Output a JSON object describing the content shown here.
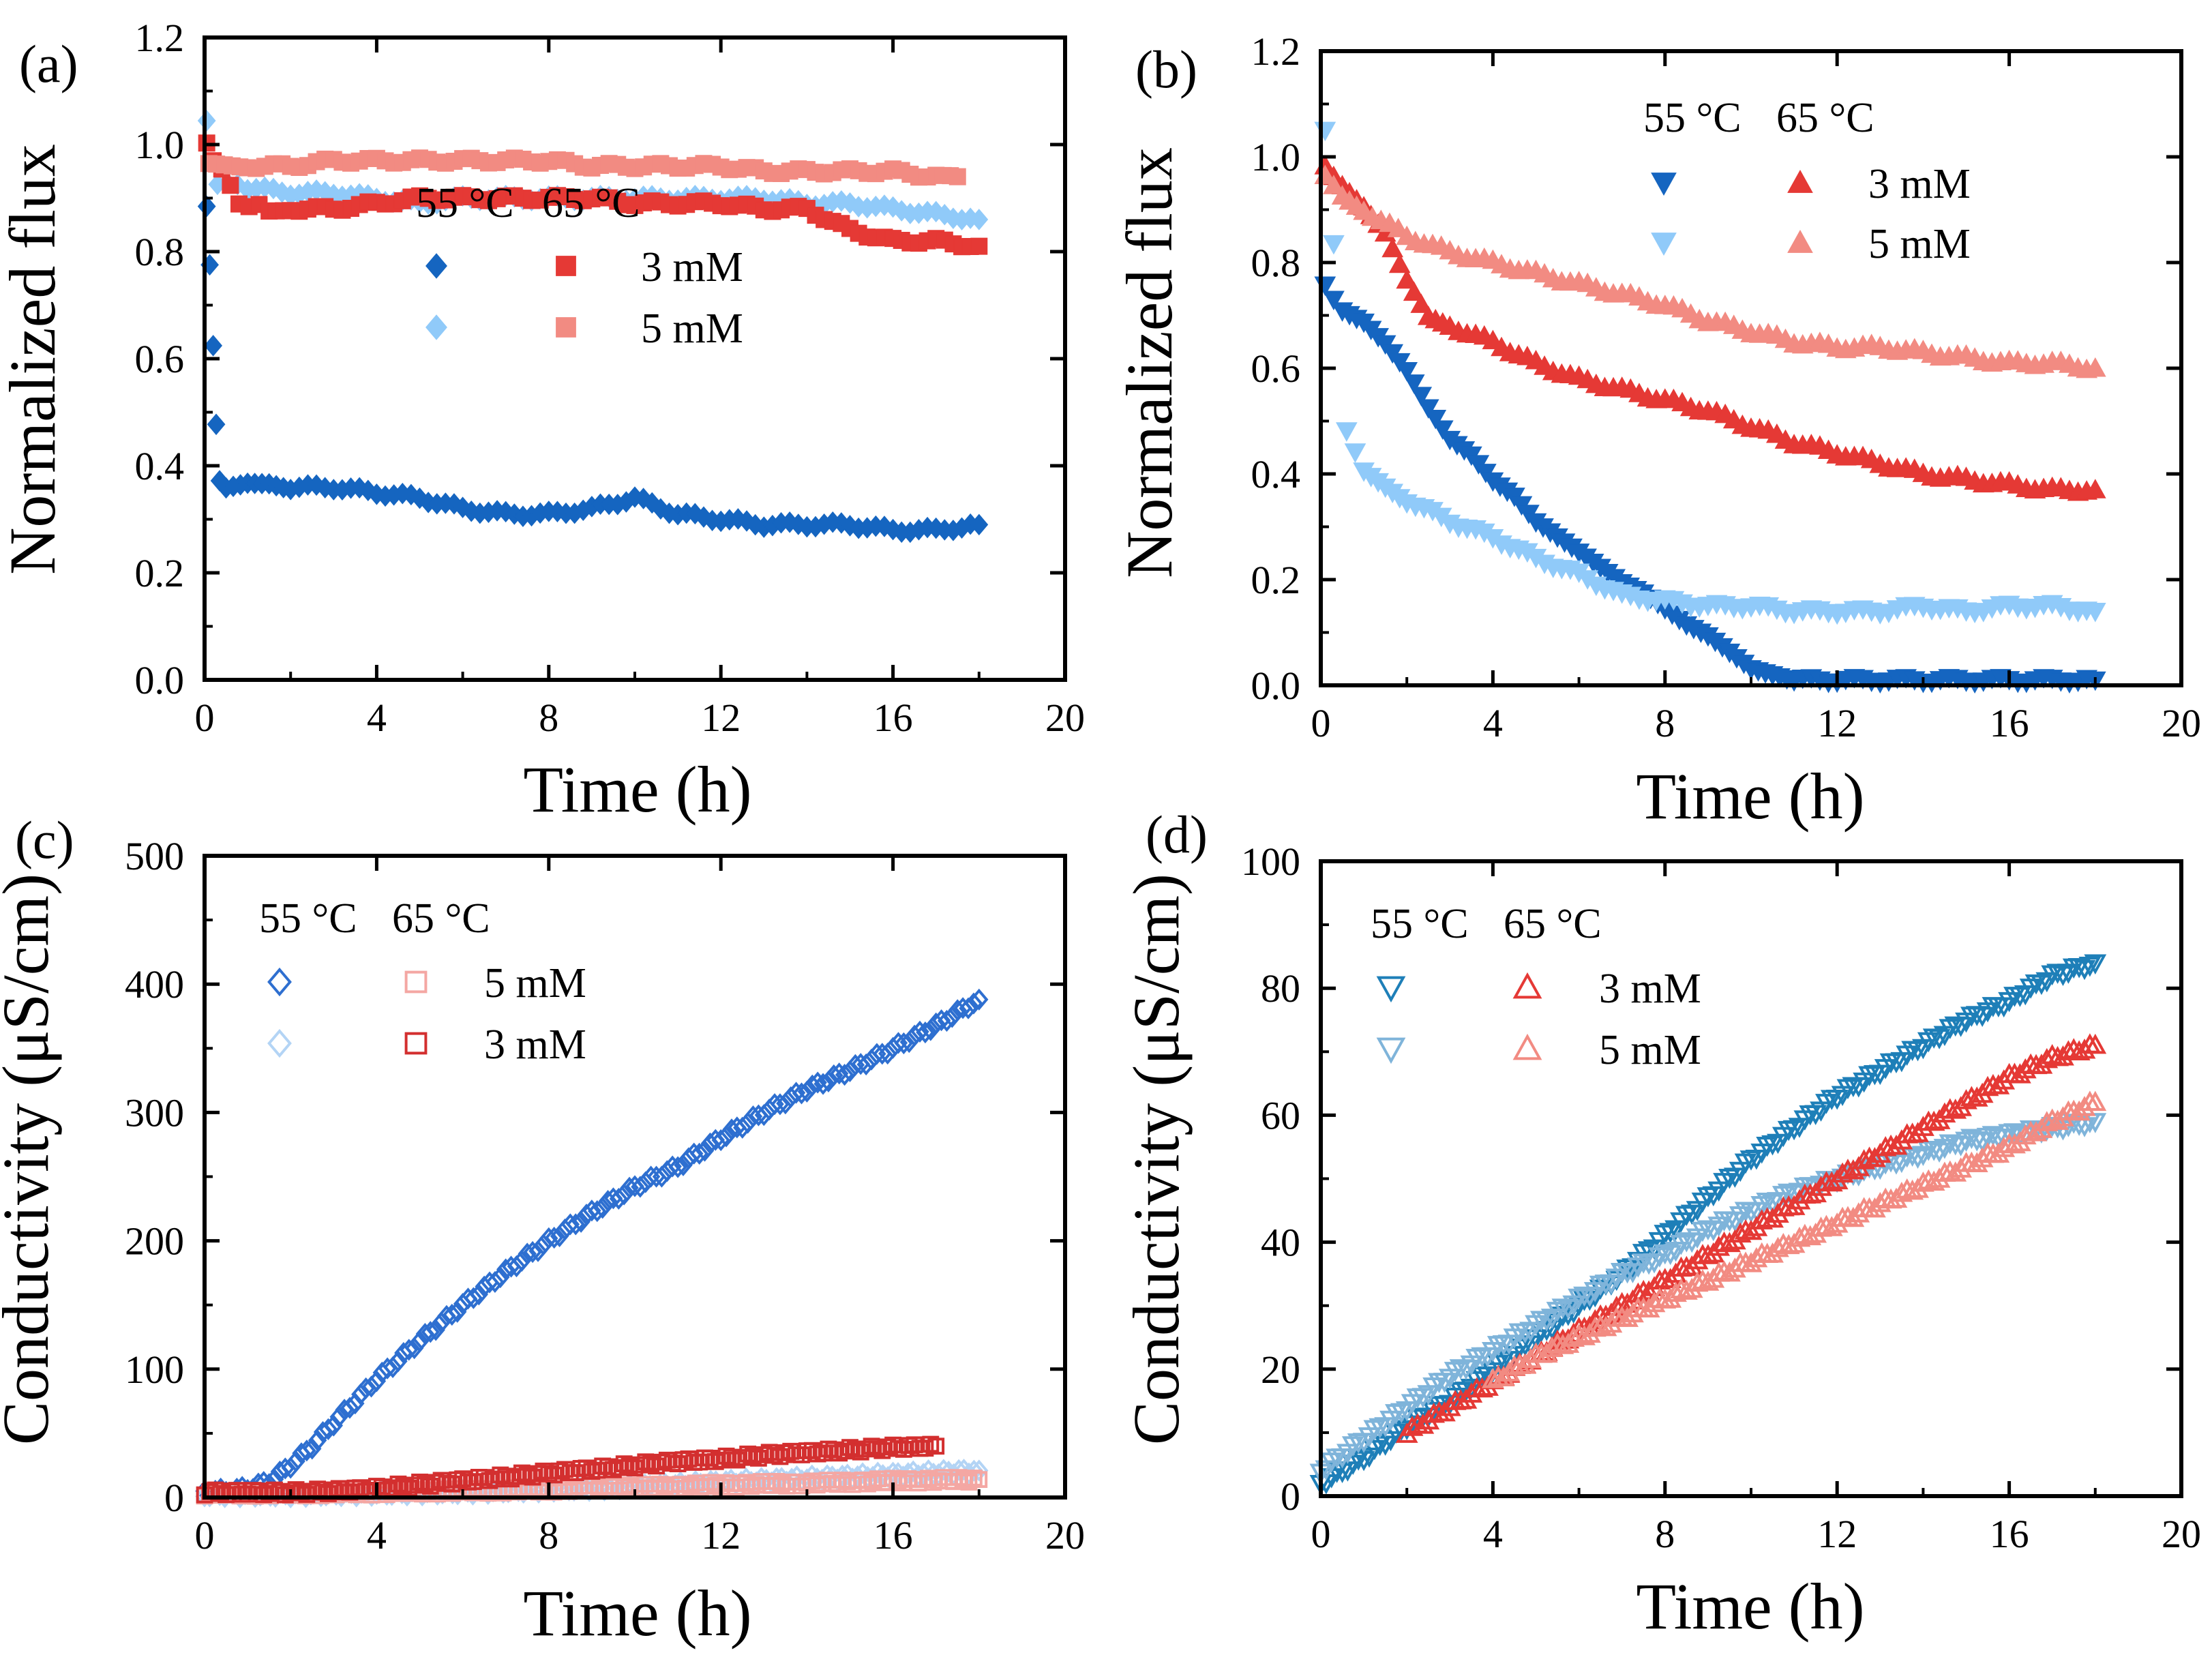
{
  "figure": {
    "panels": [
      "a",
      "b",
      "c",
      "d"
    ]
  },
  "colors": {
    "blue_dark": "#1565C0",
    "blue_light": "#90CAF9",
    "red_dark": "#E53935",
    "red_light": "#F28B82",
    "blue_open": "#2E6FD0",
    "blue_open_light": "#B3D4F5",
    "red_open": "#D32F2F",
    "red_open_light": "#F4A7A3",
    "teal_open": "#1E7FB8",
    "teal_open_light": "#7FB4DA"
  },
  "chart_data": [
    {
      "id": "a",
      "panel_label": "(a)",
      "type": "scatter",
      "xlabel": "Time (h)",
      "ylabel": "Normalized flux",
      "xlim": [
        0,
        20
      ],
      "ylim": [
        0,
        1.2
      ],
      "xticks": [
        0,
        4,
        8,
        12,
        16,
        20
      ],
      "yticks": [
        0.0,
        0.2,
        0.4,
        0.6,
        0.8,
        1.0,
        1.2
      ],
      "ytick_labels": [
        "0.0",
        "0.2",
        "0.4",
        "0.6",
        "0.8",
        "1.0",
        "1.2"
      ],
      "legend": {
        "header": [
          "55 °C",
          "65 °C"
        ],
        "rows": [
          {
            "label": "3 mM",
            "marker_left": "diamond",
            "color_left": "#1565C0",
            "marker_right": "square",
            "color_right": "#E53935",
            "filled": true
          },
          {
            "label": "5 mM",
            "marker_left": "diamond",
            "color_left": "#90CAF9",
            "marker_right": "square",
            "color_right": "#F28B82",
            "filled": true
          }
        ],
        "position": "center-right"
      },
      "series": [
        {
          "name": "55 °C 3 mM",
          "marker": "diamond",
          "filled": true,
          "color": "#1565C0",
          "x": [
            0.05,
            0.12,
            0.2,
            0.27,
            0.35,
            0.5,
            1,
            1.5,
            2,
            3,
            4,
            5,
            6,
            7,
            8,
            9,
            10,
            11,
            12,
            13,
            14,
            15,
            16,
            17,
            18
          ],
          "y": [
            0.88,
            0.78,
            0.62,
            0.48,
            0.37,
            0.36,
            0.37,
            0.37,
            0.36,
            0.36,
            0.35,
            0.34,
            0.32,
            0.31,
            0.31,
            0.32,
            0.34,
            0.31,
            0.3,
            0.29,
            0.29,
            0.29,
            0.28,
            0.28,
            0.29
          ]
        },
        {
          "name": "55 °C 5 mM",
          "marker": "diamond",
          "filled": true,
          "color": "#90CAF9",
          "x": [
            0.05,
            0.3,
            1,
            2,
            3,
            4,
            5,
            6,
            7,
            8,
            9,
            10,
            11,
            12,
            13,
            14,
            15,
            16,
            17,
            18
          ],
          "y": [
            1.04,
            0.93,
            0.92,
            0.91,
            0.91,
            0.9,
            0.89,
            0.9,
            0.9,
            0.9,
            0.9,
            0.9,
            0.9,
            0.9,
            0.9,
            0.89,
            0.89,
            0.88,
            0.87,
            0.86
          ]
        },
        {
          "name": "65 °C 3 mM",
          "marker": "square",
          "filled": true,
          "color": "#E53935",
          "x": [
            0.05,
            0.2,
            0.4,
            0.8,
            1.5,
            2,
            3,
            4,
            5,
            6,
            7,
            8,
            9,
            10,
            11,
            12,
            13,
            14,
            15,
            16,
            17,
            18
          ],
          "y": [
            1.0,
            0.97,
            0.95,
            0.89,
            0.88,
            0.88,
            0.88,
            0.89,
            0.9,
            0.9,
            0.9,
            0.9,
            0.9,
            0.89,
            0.89,
            0.89,
            0.88,
            0.88,
            0.84,
            0.82,
            0.82,
            0.81
          ]
        },
        {
          "name": "65 °C 5 mM",
          "marker": "square",
          "filled": true,
          "color": "#F28B82",
          "x": [
            0.1,
            1,
            2,
            3,
            4,
            5,
            6,
            7,
            8,
            9,
            10,
            11,
            12,
            13,
            14,
            15,
            16,
            17,
            17.5
          ],
          "y": [
            0.96,
            0.96,
            0.96,
            0.97,
            0.97,
            0.97,
            0.97,
            0.97,
            0.97,
            0.96,
            0.96,
            0.96,
            0.96,
            0.95,
            0.95,
            0.95,
            0.95,
            0.94,
            0.94
          ]
        }
      ]
    },
    {
      "id": "b",
      "panel_label": "(b)",
      "type": "scatter",
      "xlabel": "Time (h)",
      "ylabel": "Normalized flux",
      "xlim": [
        0,
        20
      ],
      "ylim": [
        0,
        1.2
      ],
      "xticks": [
        0,
        4,
        8,
        12,
        16,
        20
      ],
      "yticks": [
        0.0,
        0.2,
        0.4,
        0.6,
        0.8,
        1.0,
        1.2
      ],
      "ytick_labels": [
        "0.0",
        "0.2",
        "0.4",
        "0.6",
        "0.8",
        "1.0",
        "1.2"
      ],
      "legend": {
        "header": [
          "55 °C",
          "65 °C"
        ],
        "rows": [
          {
            "label": "3 mM",
            "marker_left": "triangle-down",
            "color_left": "#1565C0",
            "marker_right": "triangle-up",
            "color_right": "#E53935",
            "filled": true
          },
          {
            "label": "5 mM",
            "marker_left": "triangle-down",
            "color_left": "#90CAF9",
            "marker_right": "triangle-up",
            "color_right": "#F28B82",
            "filled": true
          }
        ],
        "position": "top-center"
      },
      "series": [
        {
          "name": "55 °C 3 mM",
          "marker": "triangle-down",
          "filled": true,
          "color": "#1565C0",
          "x": [
            0.1,
            0.5,
            1,
            1.5,
            2,
            2.5,
            3,
            3.5,
            4,
            4.5,
            5,
            5.5,
            6,
            6.5,
            7,
            7.5,
            8,
            8.5,
            9,
            9.5,
            10,
            10.5,
            11,
            12,
            13,
            14,
            15,
            16,
            17,
            18
          ],
          "y": [
            0.76,
            0.71,
            0.69,
            0.65,
            0.6,
            0.53,
            0.47,
            0.44,
            0.39,
            0.36,
            0.31,
            0.28,
            0.25,
            0.22,
            0.19,
            0.17,
            0.14,
            0.11,
            0.09,
            0.06,
            0.03,
            0.02,
            0.01,
            0.01,
            0.01,
            0.01,
            0.01,
            0.01,
            0.01,
            0.01
          ]
        },
        {
          "name": "55 °C 5 mM",
          "marker": "triangle-down",
          "filled": true,
          "color": "#90CAF9",
          "x": [
            0.1,
            0.3,
            0.6,
            1,
            1.5,
            2,
            3,
            4,
            5,
            6,
            7,
            8,
            9,
            10,
            11,
            12,
            13,
            14,
            15,
            16,
            17,
            18
          ],
          "y": [
            1.05,
            0.84,
            0.48,
            0.41,
            0.38,
            0.35,
            0.31,
            0.28,
            0.24,
            0.21,
            0.17,
            0.16,
            0.15,
            0.15,
            0.14,
            0.14,
            0.14,
            0.15,
            0.14,
            0.15,
            0.15,
            0.14
          ]
        },
        {
          "name": "65 °C 3 mM",
          "marker": "triangle-up",
          "filled": true,
          "color": "#E53935",
          "x": [
            0.1,
            0.5,
            1,
            1.5,
            2,
            2.5,
            3,
            4,
            5,
            6,
            7,
            8,
            9,
            10,
            11,
            12,
            13,
            14,
            15,
            16,
            17,
            18
          ],
          "y": [
            0.98,
            0.95,
            0.91,
            0.86,
            0.77,
            0.7,
            0.68,
            0.65,
            0.61,
            0.58,
            0.56,
            0.54,
            0.52,
            0.49,
            0.46,
            0.44,
            0.42,
            0.4,
            0.39,
            0.38,
            0.37,
            0.37
          ]
        },
        {
          "name": "65 °C 5 mM",
          "marker": "triangle-up",
          "filled": true,
          "color": "#F28B82",
          "x": [
            0.1,
            0.5,
            1,
            2,
            3,
            4,
            5,
            6,
            7,
            8,
            9,
            10,
            11,
            12,
            13,
            14,
            15,
            16,
            17,
            18
          ],
          "y": [
            0.96,
            0.93,
            0.9,
            0.85,
            0.82,
            0.8,
            0.78,
            0.76,
            0.74,
            0.72,
            0.69,
            0.67,
            0.65,
            0.64,
            0.64,
            0.63,
            0.62,
            0.61,
            0.61,
            0.6
          ]
        }
      ]
    },
    {
      "id": "c",
      "panel_label": "(c)",
      "type": "scatter",
      "xlabel": "Time (h)",
      "ylabel": "Conductivity (μS/cm)",
      "xlim": [
        0,
        20
      ],
      "ylim": [
        0,
        500
      ],
      "xticks": [
        0,
        4,
        8,
        12,
        16,
        20
      ],
      "yticks": [
        0,
        100,
        200,
        300,
        400,
        500
      ],
      "ytick_labels": [
        "0",
        "100",
        "200",
        "300",
        "400",
        "500"
      ],
      "legend": {
        "header": [
          "55 °C",
          "65 °C"
        ],
        "rows": [
          {
            "label": "5 mM",
            "marker_left": "diamond",
            "color_left": "#2E6FD0",
            "marker_right": "square",
            "color_right": "#F4A7A3",
            "filled": false
          },
          {
            "label": "3 mM",
            "marker_left": "diamond",
            "color_left": "#B3D4F5",
            "marker_right": "square",
            "color_right": "#D32F2F",
            "filled": false
          }
        ],
        "position": "top-left"
      },
      "series": [
        {
          "name": "55 °C 5 mM",
          "marker": "diamond",
          "filled": false,
          "color": "#2E6FD0",
          "x": [
            0,
            0.5,
            1,
            1.5,
            2,
            2.5,
            3,
            3.5,
            4,
            5,
            6,
            7,
            8,
            9,
            10,
            11,
            12,
            13,
            14,
            15,
            16,
            17,
            18
          ],
          "y": [
            5,
            5,
            7,
            12,
            25,
            40,
            58,
            75,
            92,
            122,
            150,
            176,
            200,
            222,
            242,
            258,
            280,
            300,
            318,
            333,
            350,
            368,
            388
          ]
        },
        {
          "name": "55 °C 3 mM",
          "marker": "diamond",
          "filled": false,
          "color": "#B3D4F5",
          "x": [
            0,
            2,
            4,
            6,
            8,
            10,
            12,
            14,
            16,
            18
          ],
          "y": [
            2,
            2,
            3,
            4,
            6,
            8,
            12,
            15,
            18,
            21
          ]
        },
        {
          "name": "65 °C 5 mM",
          "marker": "square",
          "filled": false,
          "color": "#F4A7A3",
          "x": [
            0,
            2,
            4,
            6,
            8,
            10,
            12,
            14,
            16,
            18
          ],
          "y": [
            3,
            3,
            4,
            5,
            6,
            8,
            10,
            11,
            13,
            14
          ]
        },
        {
          "name": "65 °C 3 mM",
          "marker": "square",
          "filled": false,
          "color": "#D32F2F",
          "x": [
            0,
            1,
            2,
            3,
            4,
            5,
            6,
            7,
            8,
            9,
            10,
            11,
            12,
            13,
            14,
            15,
            16,
            17
          ],
          "y": [
            4,
            4,
            4,
            5,
            7,
            10,
            13,
            16,
            19,
            22,
            25,
            28,
            30,
            33,
            35,
            37,
            39,
            40
          ]
        }
      ]
    },
    {
      "id": "d",
      "panel_label": "(d)",
      "type": "scatter",
      "xlabel": "Time (h)",
      "ylabel": "Conductivity (μS/cm)",
      "xlim": [
        0,
        20
      ],
      "ylim": [
        0,
        100
      ],
      "xticks": [
        0,
        4,
        8,
        12,
        16,
        20
      ],
      "yticks": [
        0,
        20,
        40,
        60,
        80,
        100
      ],
      "ytick_labels": [
        "0",
        "20",
        "40",
        "60",
        "80",
        "100"
      ],
      "legend": {
        "header": [
          "55 °C",
          "65 °C"
        ],
        "rows": [
          {
            "label": "3 mM",
            "marker_left": "triangle-down",
            "color_left": "#1E7FB8",
            "marker_right": "triangle-up",
            "color_right": "#E53935",
            "filled": false
          },
          {
            "label": "5 mM",
            "marker_left": "triangle-down",
            "color_left": "#7FB4DA",
            "marker_right": "triangle-up",
            "color_right": "#F28B82",
            "filled": false
          }
        ],
        "position": "top-left"
      },
      "series": [
        {
          "name": "55 °C 3 mM",
          "marker": "triangle-down",
          "filled": false,
          "color": "#1E7FB8",
          "x": [
            0,
            1,
            2,
            3,
            4,
            5,
            6,
            7,
            8,
            9,
            10,
            11,
            12,
            13,
            14,
            15,
            16,
            17,
            18
          ],
          "y": [
            2,
            6,
            11,
            15,
            20,
            25,
            30,
            35,
            41,
            47,
            53,
            58,
            63,
            67,
            71,
            75,
            78,
            82,
            84
          ]
        },
        {
          "name": "55 °C 5 mM",
          "marker": "triangle-down",
          "filled": false,
          "color": "#7FB4DA",
          "x": [
            0,
            1,
            2,
            3,
            4,
            5,
            6,
            7,
            8,
            9,
            10,
            11,
            12,
            13,
            14,
            15,
            16,
            17,
            18
          ],
          "y": [
            4,
            9,
            14,
            19,
            23,
            27,
            31,
            35,
            38,
            42,
            45,
            48,
            50,
            52,
            54,
            56,
            57,
            58,
            59
          ]
        },
        {
          "name": "65 °C 3 mM",
          "marker": "triangle-up",
          "filled": false,
          "color": "#E53935",
          "x": [
            2,
            3,
            4,
            5,
            6,
            7,
            8,
            9,
            10,
            11,
            12,
            13,
            14,
            15,
            16,
            17,
            18
          ],
          "y": [
            10,
            14,
            18,
            22,
            26,
            30,
            34,
            38,
            42,
            46,
            50,
            54,
            58,
            62,
            66,
            69,
            71
          ]
        },
        {
          "name": "65 °C 5 mM",
          "marker": "triangle-up",
          "filled": false,
          "color": "#F28B82",
          "x": [
            4,
            5,
            6,
            7,
            8,
            9,
            10,
            11,
            12,
            13,
            14,
            15,
            16,
            17,
            18
          ],
          "y": [
            18,
            22,
            25,
            28,
            31,
            34,
            37,
            40,
            43,
            46,
            49,
            52,
            55,
            59,
            62
          ]
        }
      ]
    }
  ]
}
